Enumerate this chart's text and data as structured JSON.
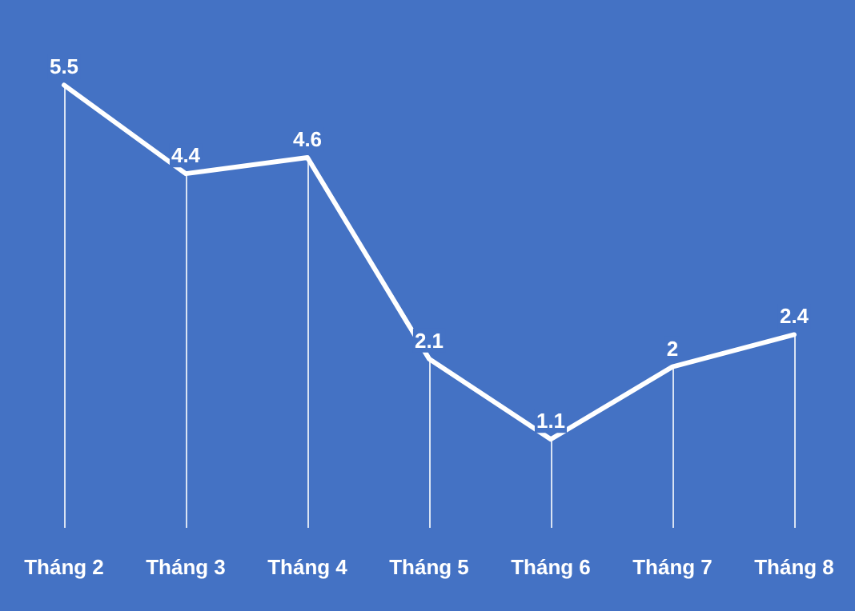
{
  "chart_data": {
    "type": "line",
    "categories": [
      "Tháng 2",
      "Tháng 3",
      "Tháng 4",
      "Tháng 5",
      "Tháng 6",
      "Tháng 7",
      "Tháng 8"
    ],
    "series": [
      {
        "color": "#ffffff",
        "values": [
          5.5,
          4.4,
          4.6,
          2.1,
          1.1,
          2,
          2.4
        ]
      }
    ],
    "data_labels": true,
    "tick_labels": "x",
    "marker": "none",
    "grid": "x"
  }
}
